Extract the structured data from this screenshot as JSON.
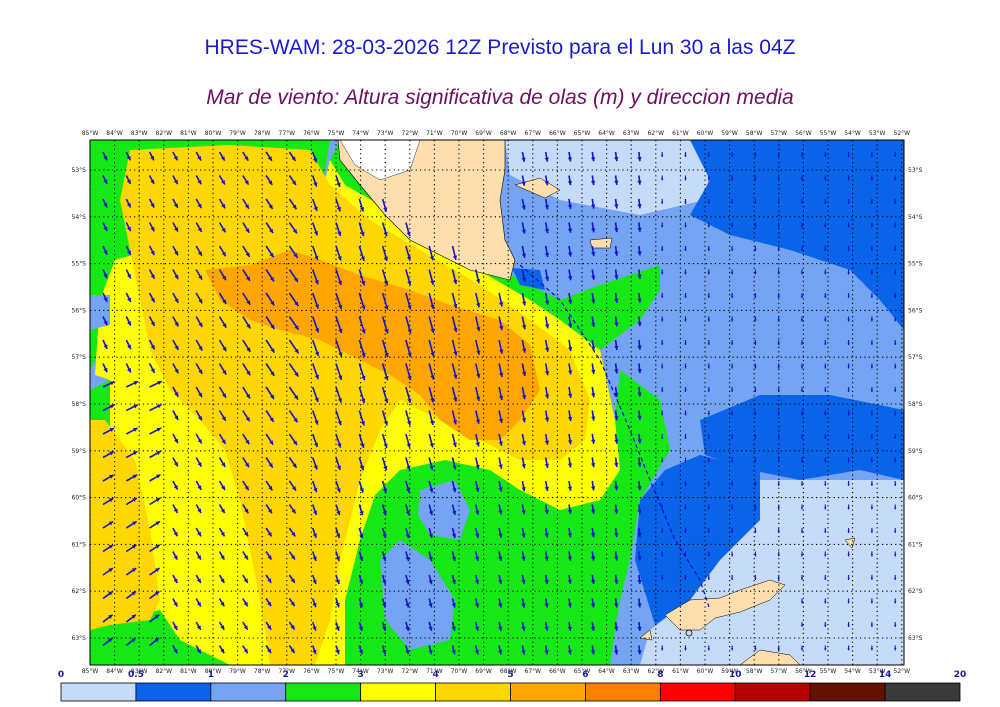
{
  "title": "HRES-WAM: 28-03-2026 12Z Previsto para el Lun 30 a las 04Z",
  "subtitle": "Mar de viento: Altura significativa de olas (m) y direccion media",
  "lon_labels": [
    "85°W",
    "84°W",
    "83°W",
    "82°W",
    "81°W",
    "80°W",
    "79°W",
    "78°W",
    "77°W",
    "76°W",
    "75°W",
    "74°W",
    "73°W",
    "72°W",
    "71°W",
    "70°W",
    "69°W",
    "68°W",
    "67°W",
    "66°W",
    "65°W",
    "64°W",
    "63°W",
    "62°W",
    "61°W",
    "60°W",
    "59°W",
    "58°W",
    "57°W",
    "56°W",
    "55°W",
    "54°W",
    "53°W",
    "52°W"
  ],
  "lat_labels": [
    "53°S",
    "54°S",
    "55°S",
    "56°S",
    "57°S",
    "58°S",
    "59°S",
    "60°S",
    "61°S",
    "62°S",
    "63°S"
  ],
  "colorbar": {
    "labels": [
      "0",
      "0.5",
      "1",
      "2",
      "3",
      "4",
      "5",
      "6",
      "8",
      "10",
      "12",
      "14",
      "20"
    ],
    "colors": [
      "#c6dbf7",
      "#0a64ea",
      "#74a4f2",
      "#16e816",
      "#ffff00",
      "#ffd700",
      "#ffa500",
      "#ff7f00",
      "#ff0000",
      "#b40000",
      "#641000",
      "#3a3a3a"
    ]
  },
  "legend_colors": {
    "land": "#ffdead",
    "arrow": "#1414c8",
    "grid": "#000000"
  }
}
